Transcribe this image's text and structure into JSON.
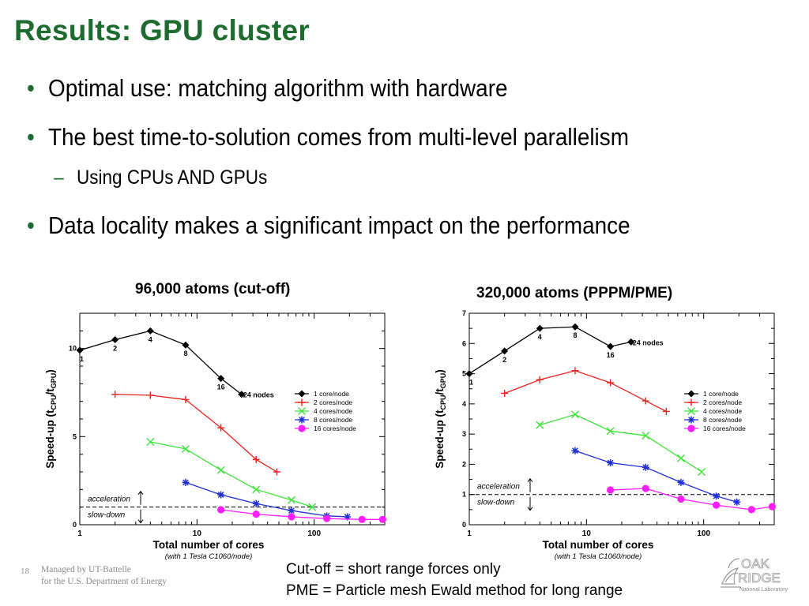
{
  "slide": {
    "title": "Results: GPU cluster",
    "bullets": [
      {
        "text": "Optimal use: matching algorithm with hardware"
      },
      {
        "text": "The best time-to-solution comes from multi-level parallelism"
      },
      {
        "text": "Using CPUs AND GPUs"
      },
      {
        "text": "Data locality makes a significant impact on the performance"
      }
    ],
    "footer_number": "18",
    "footer_line1": "Managed by UT-Battelle",
    "footer_line2": "for the U.S. Department of Energy",
    "note_line1": "Cut-off = short range forces only",
    "note_line2": "PME = Particle mesh Ewald method for long range",
    "logo_text1": "OAK",
    "logo_text2": "RIDGE",
    "logo_text3": "National Laboratory"
  },
  "chart_data": [
    {
      "type": "line",
      "title": "96,000 atoms (cut-off)",
      "xlabel": "Total number of cores",
      "xlabel_note": "(with 1 Tesla C1060/node)",
      "ylabel_main": "Speed-up (t",
      "ylabel_sub1": "CPU",
      "ylabel_mid": "/t",
      "ylabel_sub2": "GPU",
      "ylabel_end": ")",
      "x_scale": "log",
      "xlim": [
        1,
        400
      ],
      "ylim": [
        0,
        12
      ],
      "xticks": [
        {
          "v": 1,
          "label": "1"
        },
        {
          "v": 10,
          "label": "10"
        },
        {
          "v": 100,
          "label": "100"
        }
      ],
      "yticks": [
        {
          "v": 0,
          "label": "0"
        },
        {
          "v": 5,
          "label": "5"
        },
        {
          "v": 10,
          "label": "10"
        }
      ],
      "reference_line": 1,
      "acceleration_label": "acceleration",
      "slowdown_label": "slow-down",
      "legend_position": "center-right",
      "series": [
        {
          "name": "1 core/node",
          "marker": "diamond",
          "color": "#000000",
          "x": [
            1,
            2,
            4,
            8,
            16,
            24
          ],
          "y": [
            9.9,
            10.5,
            11.0,
            10.2,
            8.3,
            7.4
          ],
          "labels": [
            "1",
            "2",
            "4",
            "8",
            "16",
            "24 nodes"
          ]
        },
        {
          "name": "2 cores/node",
          "marker": "plus",
          "color": "#e8211c",
          "x": [
            2,
            4,
            8,
            16,
            32,
            48
          ],
          "y": [
            7.4,
            7.35,
            7.1,
            5.5,
            3.7,
            3.0
          ]
        },
        {
          "name": "4 cores/node",
          "marker": "x",
          "color": "#3ee33a",
          "x": [
            4,
            8,
            16,
            32,
            64,
            96
          ],
          "y": [
            4.7,
            4.3,
            3.1,
            2.0,
            1.4,
            1.0
          ]
        },
        {
          "name": "8 cores/node",
          "marker": "star",
          "color": "#1f2fd4",
          "x": [
            8,
            16,
            32,
            64,
            128,
            192
          ],
          "y": [
            2.4,
            1.7,
            1.2,
            0.8,
            0.5,
            0.45
          ]
        },
        {
          "name": "16 cores/node",
          "marker": "circle",
          "color": "#ff1cff",
          "x": [
            16,
            32,
            64,
            128,
            256,
            384
          ],
          "y": [
            0.85,
            0.6,
            0.45,
            0.35,
            0.3,
            0.3
          ]
        }
      ]
    },
    {
      "type": "line",
      "title": "320,000 atoms (PPPM/PME)",
      "xlabel": "Total number of cores",
      "xlabel_note": "(with 1 Tesla C1060/node)",
      "ylabel_main": "Speed-up (t",
      "ylabel_sub1": "CPU",
      "ylabel_mid": "/t",
      "ylabel_sub2": "GPU",
      "ylabel_end": ")",
      "x_scale": "log",
      "xlim": [
        1,
        400
      ],
      "ylim": [
        0,
        7
      ],
      "xticks": [
        {
          "v": 1,
          "label": "1"
        },
        {
          "v": 10,
          "label": "10"
        },
        {
          "v": 100,
          "label": "100"
        }
      ],
      "yticks": [
        {
          "v": 0,
          "label": "0"
        },
        {
          "v": 1,
          "label": "1"
        },
        {
          "v": 2,
          "label": "2"
        },
        {
          "v": 3,
          "label": "3"
        },
        {
          "v": 4,
          "label": "4"
        },
        {
          "v": 5,
          "label": "5"
        },
        {
          "v": 6,
          "label": "6"
        },
        {
          "v": 7,
          "label": "7"
        }
      ],
      "reference_line": 1,
      "acceleration_label": "acceleration",
      "slowdown_label": "slow-down",
      "legend_position": "center-right",
      "series": [
        {
          "name": "1 core/node",
          "marker": "diamond",
          "color": "#000000",
          "x": [
            1,
            2,
            4,
            8,
            16,
            24
          ],
          "y": [
            5.0,
            5.75,
            6.5,
            6.55,
            5.9,
            6.05
          ],
          "labels": [
            "1",
            "2",
            "4",
            "8",
            "16",
            "24 nodes"
          ]
        },
        {
          "name": "2 cores/node",
          "marker": "plus",
          "color": "#e8211c",
          "x": [
            2,
            4,
            8,
            16,
            32,
            48
          ],
          "y": [
            4.35,
            4.8,
            5.1,
            4.7,
            4.1,
            3.75
          ]
        },
        {
          "name": "4 cores/node",
          "marker": "x",
          "color": "#3ee33a",
          "x": [
            4,
            8,
            16,
            32,
            64,
            96
          ],
          "y": [
            3.3,
            3.65,
            3.1,
            2.95,
            2.2,
            1.75
          ]
        },
        {
          "name": "8 cores/node",
          "marker": "star",
          "color": "#1f2fd4",
          "x": [
            8,
            16,
            32,
            64,
            128,
            192
          ],
          "y": [
            2.45,
            2.05,
            1.9,
            1.4,
            0.95,
            0.75
          ]
        },
        {
          "name": "16 cores/node",
          "marker": "circle",
          "color": "#ff1cff",
          "x": [
            16,
            32,
            64,
            128,
            256,
            384
          ],
          "y": [
            1.15,
            1.2,
            0.85,
            0.65,
            0.5,
            0.6
          ]
        }
      ]
    }
  ]
}
